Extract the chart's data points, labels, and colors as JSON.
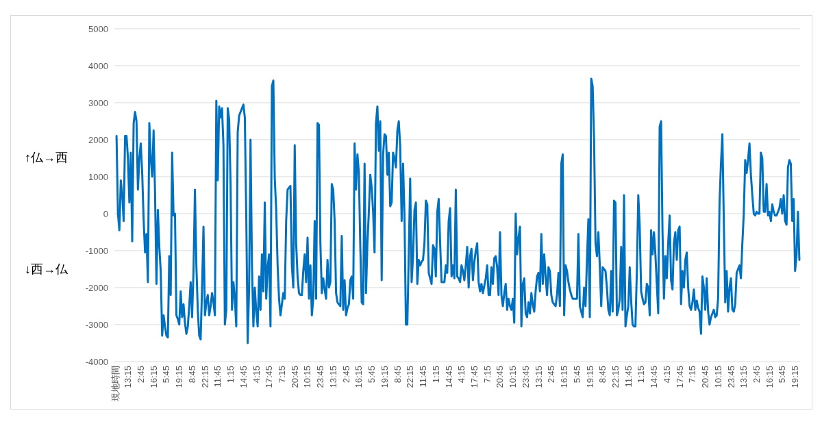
{
  "chart_data": {
    "type": "line",
    "annotations": [
      "↑仏→西",
      "↓西→仏"
    ],
    "categories": [
      "現地時間",
      null,
      null,
      null,
      null,
      null,
      null,
      null,
      null,
      "13:15",
      null,
      null,
      null,
      null,
      null,
      null,
      null,
      null,
      "2:45",
      null,
      null,
      null,
      null,
      null,
      null,
      null,
      null,
      "16:15",
      null,
      null,
      null,
      null,
      null,
      null,
      null,
      null,
      "5:45",
      null,
      null,
      null,
      null,
      null,
      null,
      null,
      null,
      "19:15",
      null,
      null,
      null,
      null,
      null,
      null,
      null,
      null,
      "8:45",
      null,
      null,
      null,
      null,
      null,
      null,
      null,
      null,
      "22:15",
      null,
      null,
      null,
      null,
      null,
      null,
      null,
      null,
      "11:45",
      null,
      null,
      null,
      null,
      null,
      null,
      null,
      null,
      "1:15",
      null,
      null,
      null,
      null,
      null,
      null,
      null,
      null,
      "14:45",
      null,
      null,
      null,
      null,
      null,
      null,
      null,
      null,
      "4:15",
      null,
      null,
      null,
      null,
      null,
      null,
      null,
      null,
      "17:45",
      null,
      null,
      null,
      null,
      null,
      null,
      null,
      null,
      "7:15",
      null,
      null,
      null,
      null,
      null,
      null,
      null,
      null,
      "20:45",
      null,
      null,
      null,
      null,
      null,
      null,
      null,
      null,
      "10:15",
      null,
      null,
      null,
      null,
      null,
      null,
      null,
      null,
      "23:45",
      null,
      null,
      null,
      null,
      null,
      null,
      null,
      null,
      "13:15",
      null,
      null,
      null,
      null,
      null,
      null,
      null,
      null,
      "2:45",
      null,
      null,
      null,
      null,
      null,
      null,
      null,
      null,
      "16:15",
      null,
      null,
      null,
      null,
      null,
      null,
      null,
      null,
      "5:45",
      null,
      null,
      null,
      null,
      null,
      null,
      null,
      null,
      "19:15",
      null,
      null,
      null,
      null,
      null,
      null,
      null,
      null,
      "8:45",
      null,
      null,
      null,
      null,
      null,
      null,
      null,
      null,
      "22:15",
      null,
      null,
      null,
      null,
      null,
      null,
      null,
      null,
      "11:45",
      null,
      null,
      null,
      null,
      null,
      null,
      null,
      null,
      "1:15",
      null,
      null,
      null,
      null,
      null,
      null,
      null,
      null,
      "14:45",
      null,
      null,
      null,
      null,
      null,
      null,
      null,
      null,
      "4:15",
      null,
      null,
      null,
      null,
      null,
      null,
      null,
      null,
      "17:45",
      null,
      null,
      null,
      null,
      null,
      null,
      null,
      null,
      "7:15",
      null,
      null,
      null,
      null,
      null,
      null,
      null,
      null,
      "20:45",
      null,
      null,
      null,
      null,
      null,
      null,
      null,
      null,
      "10:15",
      null,
      null,
      null,
      null,
      null,
      null,
      null,
      null,
      "23:45",
      null,
      null,
      null,
      null,
      null,
      null,
      null,
      null,
      "13:15",
      null,
      null,
      null,
      null,
      null,
      null,
      null,
      null,
      "2:45",
      null,
      null,
      null,
      null,
      null,
      null,
      null,
      null,
      "16:15",
      null,
      null,
      null,
      null,
      null,
      null,
      null,
      null,
      "5:45",
      null,
      null,
      null,
      null,
      null,
      null,
      null,
      null,
      "19:15",
      null,
      null,
      null,
      null,
      null,
      null,
      null,
      null,
      "8:45",
      null,
      null,
      null,
      null,
      null,
      null,
      null,
      null,
      "22:15",
      null,
      null,
      null,
      null,
      null,
      null,
      null,
      null,
      "11:45",
      null,
      null,
      null,
      null,
      null,
      null,
      null,
      null,
      "1:15",
      null,
      null,
      null,
      null,
      null,
      null,
      null,
      null,
      "14:45",
      null,
      null,
      null,
      null,
      null,
      null,
      null,
      null,
      "4:15",
      null,
      null,
      null,
      null,
      null,
      null,
      null,
      null,
      "17:45",
      null,
      null,
      null,
      null,
      null,
      null,
      null,
      null,
      "7:15",
      null,
      null,
      null,
      null,
      null,
      null,
      null,
      null,
      "20:45",
      null,
      null,
      null,
      null,
      null,
      null,
      null,
      null,
      "10:15",
      null,
      null,
      null,
      null,
      null,
      null,
      null,
      null,
      "23:45",
      null,
      null,
      null,
      null,
      null,
      null,
      null,
      null,
      "13:15",
      null,
      null,
      null,
      null,
      null,
      null,
      null,
      null,
      "2:45",
      null,
      null,
      null,
      null,
      null,
      null,
      null,
      null,
      "16:15",
      null,
      null,
      null,
      null,
      null,
      null,
      null,
      null,
      "5:45",
      null,
      null,
      null,
      null,
      null,
      null,
      null,
      null,
      "19:15",
      null,
      null,
      null
    ],
    "ylim": [
      -4000,
      5000
    ],
    "yticks": [
      -4000,
      -3000,
      -2000,
      -1000,
      0,
      1000,
      2000,
      3000,
      4000,
      5000
    ],
    "grid": "y",
    "line_style": "solid",
    "series": [
      {
        "color": "#0070c0",
        "values": [
          null,
          2100,
          0,
          -450,
          900,
          500,
          -200,
          2100,
          2100,
          1500,
          300,
          1650,
          -750,
          2450,
          2750,
          2500,
          650,
          1500,
          1900,
          1100,
          -150,
          -1050,
          -550,
          -1850,
          2450,
          1500,
          1000,
          2250,
          600,
          -1900,
          100,
          -900,
          -1550,
          -3300,
          -2750,
          -3050,
          -3300,
          -3350,
          -1150,
          -2200,
          1650,
          -50,
          0,
          -2750,
          -2850,
          -3000,
          -2100,
          -2800,
          -2450,
          -2950,
          -3250,
          -3050,
          -2500,
          -1850,
          -2800,
          -1550,
          650,
          -1400,
          -2600,
          -3300,
          -3400,
          -2000,
          -350,
          -2750,
          -2400,
          -2200,
          -2750,
          -2500,
          -2150,
          -2400,
          -2750,
          3050,
          900,
          2900,
          2600,
          2850,
          1850,
          -3000,
          -2600,
          2850,
          2550,
          800,
          -2600,
          -1850,
          -2300,
          -3050,
          2200,
          2650,
          2750,
          2850,
          2950,
          2600,
          -50,
          -3500,
          -2000,
          2000,
          -1400,
          -3050,
          -2000,
          -2650,
          -3050,
          -1700,
          -2600,
          -1100,
          -2100,
          300,
          -2300,
          -1450,
          -1100,
          -3050,
          3450,
          3600,
          950,
          100,
          -1400,
          -2300,
          -2750,
          -2450,
          -2150,
          -2300,
          -200,
          650,
          700,
          750,
          -1400,
          -2000,
          1850,
          -800,
          -1700,
          -2150,
          -2200,
          -2200,
          -1550,
          -1100,
          -1850,
          -650,
          -2300,
          -1400,
          -2750,
          -2300,
          -200,
          -2300,
          2450,
          2400,
          -800,
          -2150,
          -1750,
          -2050,
          -2300,
          -1250,
          -2000,
          -1850,
          800,
          650,
          -200,
          -2150,
          -2400,
          -2450,
          -2500,
          -600,
          -2600,
          -1800,
          -2750,
          -2550,
          -2450,
          -1800,
          -1700,
          -2300,
          1900,
          650,
          1600,
          1100,
          -900,
          -2400,
          -2450,
          1350,
          -2150,
          -800,
          50,
          1050,
          700,
          50,
          -1050,
          2450,
          2900,
          1700,
          2500,
          -1800,
          1600,
          2150,
          2100,
          1050,
          1650,
          200,
          300,
          1650,
          1500,
          1250,
          2250,
          2500,
          1800,
          -200,
          1350,
          -50,
          -3000,
          -3000,
          -1100,
          950,
          -1850,
          -1150,
          100,
          300,
          -1900,
          -1250,
          -1400,
          -1300,
          -1250,
          -800,
          350,
          250,
          -1600,
          -1750,
          -1900,
          -850,
          -950,
          -1700,
          50,
          400,
          -800,
          -1850,
          -1850,
          -1850,
          -1400,
          -1600,
          -200,
          150,
          -1700,
          -1400,
          -1750,
          650,
          -1700,
          -1750,
          -1850,
          -1400,
          -1550,
          -1800,
          -1400,
          -900,
          -2000,
          -1150,
          -950,
          -1800,
          -1300,
          -1000,
          -800,
          -1850,
          -2100,
          -1900,
          -2150,
          -1950,
          -1750,
          -1400,
          -2200,
          -2200,
          -1450,
          -1900,
          -1200,
          -1150,
          -1450,
          -2200,
          -500,
          -2200,
          -2500,
          -2150,
          -1900,
          -2600,
          -2300,
          -2500,
          -2600,
          -2300,
          -2950,
          0,
          -1100,
          -650,
          -350,
          -3050,
          -1900,
          -1750,
          -2700,
          -2800,
          -2400,
          -2700,
          -2150,
          -2450,
          -2650,
          -2100,
          -1700,
          -1600,
          -2100,
          -550,
          -1900,
          -1100,
          -1700,
          -2200,
          -1450,
          -1550,
          -2200,
          -2400,
          -2450,
          -2500,
          -2200,
          -1600,
          -2500,
          1350,
          1600,
          -2750,
          -1400,
          -1550,
          -1850,
          -2050,
          -2200,
          -2300,
          -2300,
          -2300,
          -2300,
          -550,
          -2500,
          -2650,
          -2800,
          -2000,
          -2500,
          -1250,
          -150,
          -2800,
          3650,
          3450,
          2000,
          -800,
          -1150,
          -500,
          -1400,
          -2500,
          -1450,
          -1500,
          -1550,
          -2000,
          -2600,
          -2750,
          -1550,
          -2650,
          350,
          300,
          -2750,
          -2600,
          -2300,
          -900,
          -2600,
          500,
          -3050,
          -2750,
          -2500,
          -1450,
          -2350,
          -3000,
          -3050,
          -3050,
          -1550,
          500,
          -350,
          -2100,
          -2300,
          -2450,
          -2400,
          -1900,
          -2000,
          -2750,
          -450,
          -1100,
          -500,
          -1100,
          -1900,
          -2700,
          2350,
          2500,
          -500,
          -2300,
          -1150,
          -1750,
          -800,
          -50,
          -1800,
          -2050,
          -800,
          -500,
          -1250,
          -450,
          -350,
          -2450,
          -1550,
          -2000,
          -1250,
          -1050,
          -2000,
          -2500,
          -2600,
          -2400,
          -2050,
          -2600,
          -2350,
          -2550,
          -2650,
          -3250,
          -1700,
          -2000,
          -2600,
          -1750,
          -2650,
          -3000,
          -2800,
          -2700,
          -2600,
          -2800,
          -2750,
          -2300,
          300,
          1350,
          2150,
          -200,
          -2400,
          -1550,
          -2650,
          -2000,
          -1750,
          -2600,
          -2650,
          -2450,
          -1600,
          -1500,
          -1400,
          -1750,
          -800,
          0,
          1450,
          1100,
          1450,
          1900,
          1050,
          500,
          0,
          -50,
          50,
          0,
          0,
          1650,
          1500,
          50,
          50,
          800,
          -50,
          50,
          -200,
          250,
          50,
          -50,
          -50,
          50,
          150,
          400,
          0,
          500,
          -200,
          -300,
          1250,
          1450,
          1350,
          -200,
          400,
          -1550,
          -1150,
          50,
          -1250
        ]
      }
    ]
  }
}
